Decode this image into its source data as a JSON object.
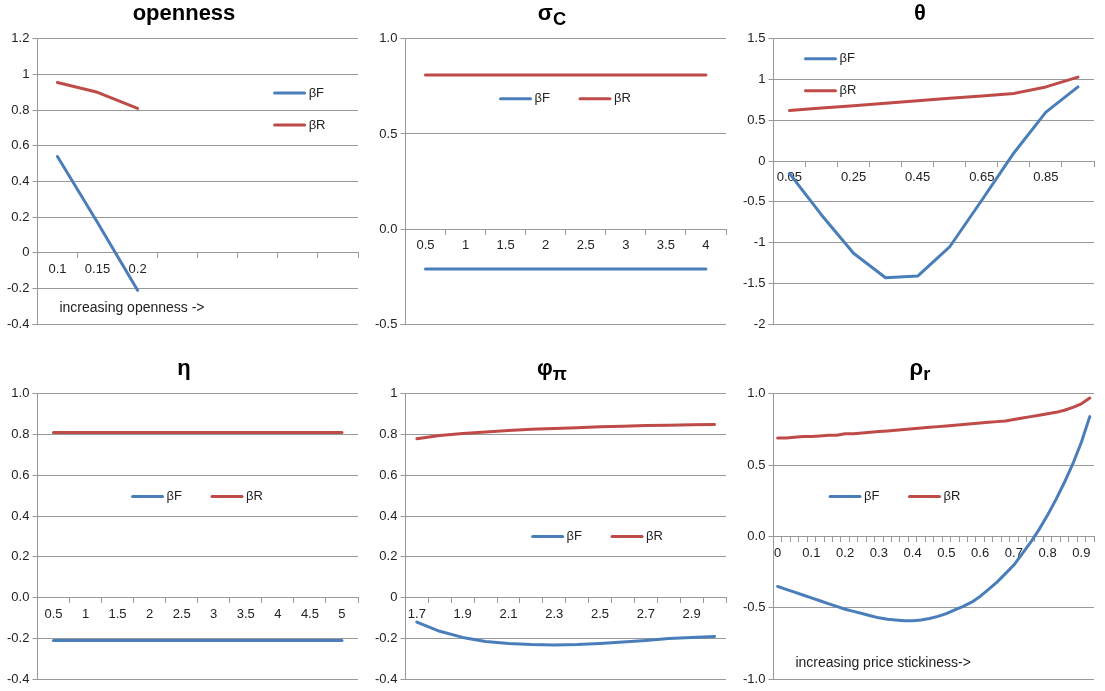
{
  "chart_data": [
    {
      "type": "line",
      "title": "openness",
      "categories": [
        "0.1",
        "0.15",
        "0.2",
        null,
        null,
        null,
        null,
        null
      ],
      "series": [
        {
          "name": "βF",
          "color": "#4a7ebb",
          "values": [
            0.54,
            0.17,
            -0.21,
            null,
            null,
            null,
            null,
            null
          ]
        },
        {
          "name": "βR",
          "color": "#be4b48",
          "values": [
            0.955,
            0.9,
            0.81,
            null,
            null,
            null,
            null,
            null
          ]
        }
      ],
      "ylim": [
        -0.4,
        1.2
      ],
      "yticks": [
        -0.4,
        -0.2,
        0,
        0.2,
        0.4,
        0.6,
        0.8,
        1,
        1.2
      ],
      "grid": "y",
      "legend": "top right",
      "marker": "none",
      "annotations": [
        "increasing openness ->"
      ]
    },
    {
      "type": "line",
      "title": "σ$_{C}$",
      "categories": [
        "0.5",
        "1",
        "1.5",
        "2",
        "2.5",
        "3",
        "3.5",
        "4"
      ],
      "series": [
        {
          "name": "βF",
          "color": "#4a7ebb",
          "values": [
            -0.21,
            -0.21,
            -0.21,
            -0.21,
            -0.21,
            -0.21,
            -0.21,
            -0.21
          ]
        },
        {
          "name": "βR",
          "color": "#be4b48",
          "values": [
            0.81,
            0.81,
            0.81,
            0.81,
            0.81,
            0.81,
            0.81,
            0.81
          ]
        }
      ],
      "ylim": [
        -0.5,
        1
      ],
      "yticks": [
        {
          "value": -0.5,
          "label": "-0.5"
        },
        {
          "value": 0,
          "label": "0.0"
        },
        {
          "value": 0.5,
          "label": "0.5"
        },
        {
          "value": 1,
          "label": "1.0"
        }
      ],
      "grid": "y",
      "legend": "top",
      "marker": "none"
    },
    {
      "type": "line",
      "title": "θ",
      "categories": [
        "0.05",
        null,
        "0.25",
        null,
        "0.45",
        null,
        "0.65",
        null,
        "0.85",
        null
      ],
      "series": [
        {
          "name": "βF",
          "color": "#4a7ebb",
          "values": [
            -0.15,
            -0.66,
            -1.13,
            -1.43,
            -1.41,
            -1.05,
            -0.48,
            0.1,
            0.6,
            0.91
          ]
        },
        {
          "name": "βR",
          "color": "#be4b48",
          "values": [
            0.62,
            0.65,
            0.68,
            0.71,
            0.74,
            0.77,
            0.8,
            0.83,
            0.91,
            1.03
          ]
        }
      ],
      "ylim": [
        -2,
        1.5
      ],
      "yticks": [
        -2,
        -1.5,
        -1,
        -0.5,
        0,
        0.5,
        1,
        1.5
      ],
      "grid": "y",
      "legend": "top left",
      "marker": "none"
    },
    {
      "type": "line",
      "title": "η",
      "categories": [
        "0.5",
        "1",
        "1.5",
        "2",
        "2.5",
        "3",
        "3.5",
        "4",
        "4.5",
        "5"
      ],
      "series": [
        {
          "name": "βF",
          "color": "#4a7ebb",
          "values": [
            -0.21,
            -0.21,
            -0.21,
            -0.21,
            -0.21,
            -0.21,
            -0.21,
            -0.21,
            -0.21,
            -0.21
          ]
        },
        {
          "name": "βR",
          "color": "#be4b48",
          "values": [
            0.81,
            0.81,
            0.81,
            0.81,
            0.81,
            0.81,
            0.81,
            0.81,
            0.81,
            0.81
          ]
        }
      ],
      "ylim": [
        -0.4,
        1
      ],
      "yticks": [
        -0.4,
        -0.2,
        {
          "value": 0,
          "label": "0.0"
        },
        0.2,
        0.4,
        0.6,
        0.8,
        {
          "value": 1,
          "label": "1.0"
        }
      ],
      "grid": "y",
      "legend": "center",
      "marker": "none"
    },
    {
      "type": "line",
      "title": "φ$_{π}$",
      "categories": [
        "1.7",
        null,
        "1.9",
        null,
        "2.1",
        null,
        "2.3",
        null,
        "2.5",
        null,
        "2.7",
        null,
        "2.9",
        null
      ],
      "series": [
        {
          "name": "βF",
          "color": "#4a7ebb",
          "values": [
            -0.12,
            -0.165,
            -0.195,
            -0.215,
            -0.225,
            -0.23,
            -0.232,
            -0.23,
            -0.225,
            -0.218,
            -0.21,
            -0.2,
            -0.195,
            -0.19
          ]
        },
        {
          "name": "βR",
          "color": "#be4b48",
          "values": [
            0.78,
            0.795,
            0.805,
            0.813,
            0.82,
            0.826,
            0.83,
            0.834,
            0.838,
            0.841,
            0.844,
            0.846,
            0.848,
            0.85
          ]
        }
      ],
      "ylim": [
        -0.4,
        1
      ],
      "yticks": [
        -0.4,
        -0.2,
        0,
        0.2,
        0.4,
        0.6,
        0.8,
        1
      ],
      "grid": "y",
      "legend": "right",
      "marker": "none"
    },
    {
      "type": "line",
      "title": "ρ$_{r}$",
      "categories": [
        "0",
        null,
        null,
        null,
        "0.1",
        null,
        null,
        null,
        "0.2",
        null,
        null,
        null,
        "0.3",
        null,
        null,
        null,
        "0.4",
        null,
        null,
        null,
        "0.5",
        null,
        null,
        null,
        "0.6",
        null,
        null,
        null,
        "0.7",
        null,
        null,
        null,
        "0.8",
        null,
        null,
        null,
        "0.9",
        null
      ],
      "series": [
        {
          "name": "βF",
          "color": "#4a7ebb",
          "values": [
            -0.35,
            -0.37,
            -0.39,
            -0.41,
            -0.43,
            -0.45,
            -0.47,
            -0.49,
            -0.51,
            -0.525,
            -0.54,
            -0.555,
            -0.57,
            -0.58,
            -0.585,
            -0.59,
            -0.59,
            -0.585,
            -0.575,
            -0.56,
            -0.54,
            -0.515,
            -0.49,
            -0.46,
            -0.42,
            -0.37,
            -0.32,
            -0.26,
            -0.2,
            -0.12,
            -0.04,
            0.05,
            0.15,
            0.26,
            0.38,
            0.51,
            0.66,
            0.84
          ]
        },
        {
          "name": "βR",
          "color": "#be4b48",
          "values": [
            0.69,
            0.69,
            0.695,
            0.7,
            0.7,
            0.705,
            0.71,
            0.71,
            0.72,
            0.72,
            0.725,
            0.73,
            0.735,
            0.74,
            0.745,
            0.75,
            0.755,
            0.76,
            0.765,
            0.77,
            0.775,
            0.78,
            0.785,
            0.79,
            0.795,
            0.8,
            0.805,
            0.81,
            0.82,
            0.83,
            0.84,
            0.85,
            0.86,
            0.87,
            0.885,
            0.905,
            0.93,
            0.97
          ]
        }
      ],
      "ylim": [
        -1,
        1
      ],
      "yticks": [
        {
          "value": -1,
          "label": "-1.0"
        },
        {
          "value": -0.5,
          "label": "-0.5"
        },
        {
          "value": 0,
          "label": "0.0"
        },
        {
          "value": 0.5,
          "label": "0.5"
        },
        {
          "value": 1,
          "label": "1.0"
        }
      ],
      "grid": "y",
      "legend": "left",
      "marker": "none",
      "annotations": [
        "increasing price stickiness->"
      ]
    }
  ]
}
